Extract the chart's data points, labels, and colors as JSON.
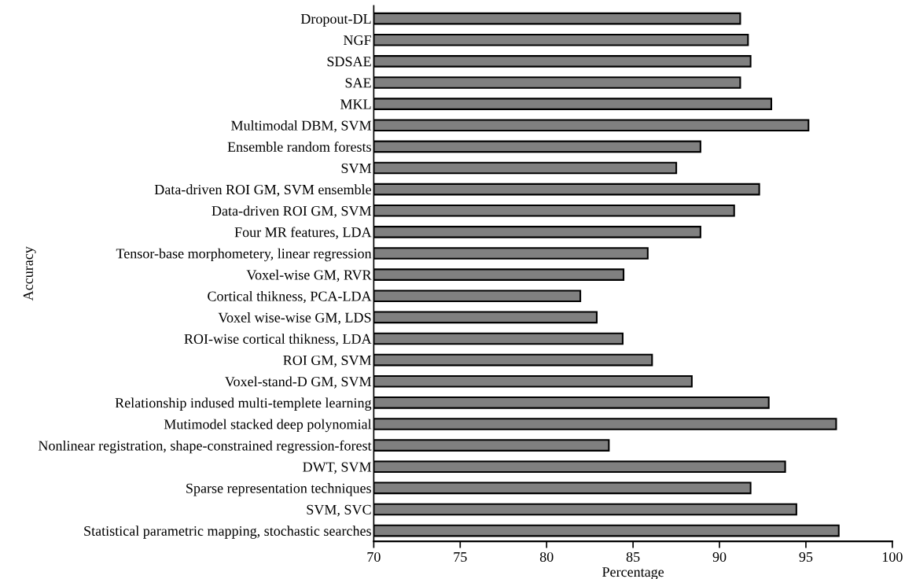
{
  "chart_data": {
    "type": "bar",
    "orientation": "horizontal",
    "xlabel": "Percentage",
    "ylabel": "Accuracy",
    "categories": [
      "Dropout-DL",
      "NGF",
      "SDSAE",
      "SAE",
      "MKL",
      "Multimodal DBM, SVM",
      "Ensemble random forests",
      "SVM",
      "Data-driven ROI GM, SVM ensemble",
      "Data-driven ROI GM, SVM",
      "Four MR features, LDA",
      "Tensor-base morphometery, linear regression",
      "Voxel-wise GM, RVR",
      "Cortical thikness, PCA-LDA",
      "Voxel wise-wise GM, LDS",
      "ROI-wise cortical thikness, LDA",
      "ROI GM, SVM",
      "Voxel-stand-D GM, SVM",
      "Relationship indused multi-templete learning",
      "Mutimodel stacked deep polynomial",
      "Nonlinear registration, shape-constrained regression-forest",
      "DWT, SVM",
      "Sparse representation techniques",
      "SVM, SVC",
      "Statistical parametric mapping, stochastic searches"
    ],
    "values": [
      91.2,
      91.65,
      91.8,
      91.2,
      93.0,
      95.15,
      88.9,
      87.5,
      92.3,
      90.85,
      88.9,
      85.85,
      84.45,
      81.95,
      82.9,
      84.4,
      86.1,
      88.4,
      92.85,
      96.75,
      83.6,
      93.8,
      91.8,
      94.45,
      96.9
    ],
    "color": "#808080",
    "xlim": [
      70,
      100
    ],
    "xticks": [
      70,
      75,
      80,
      85,
      90,
      95,
      100
    ],
    "grid": false,
    "legend": false
  }
}
